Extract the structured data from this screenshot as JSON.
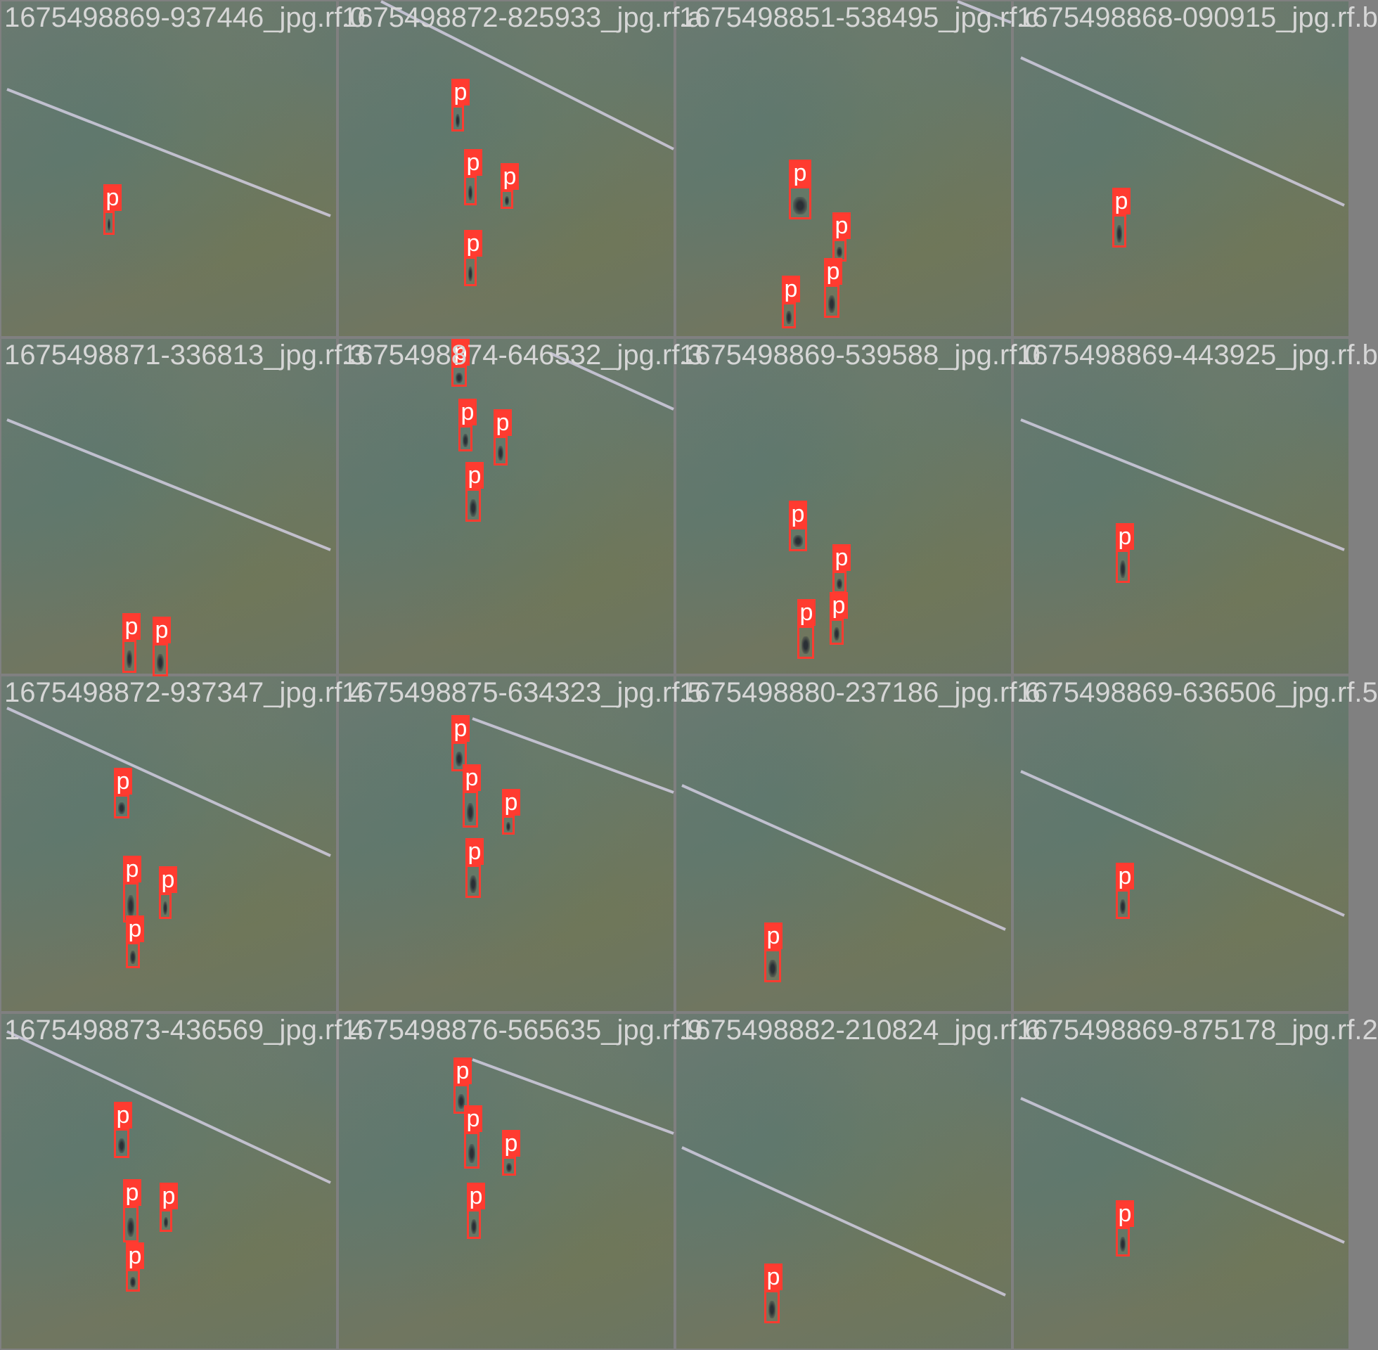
{
  "mosaic": {
    "tiles": [
      {
        "name": "1675498869-937446_jpg.rf.0",
        "detections": [
          "p"
        ]
      },
      {
        "name": "1675498872-825933_jpg.rf.a",
        "detections": [
          "p",
          "p",
          "p",
          "p"
        ]
      },
      {
        "name": "1675498851-538495_jpg.rf.c",
        "detections": [
          "p",
          "p",
          "p",
          "p"
        ]
      },
      {
        "name": "1675498868-090915_jpg.rf.b",
        "detections": [
          "p"
        ]
      },
      {
        "name": "1675498871-336813_jpg.rf.3",
        "detections": [
          "p",
          "p"
        ]
      },
      {
        "name": "1675498874-646532_jpg.rf.3",
        "detections": [
          "p",
          "p",
          "p",
          "p"
        ]
      },
      {
        "name": "1675498869-539588_jpg.rf.0",
        "detections": [
          "p",
          "p",
          "p",
          "p"
        ]
      },
      {
        "name": "1675498869-443925_jpg.rf.b",
        "detections": [
          "p"
        ]
      },
      {
        "name": "1675498872-937347_jpg.rf.4",
        "detections": [
          "p",
          "p",
          "p",
          "p"
        ]
      },
      {
        "name": "1675498875-634323_jpg.rf.5",
        "detections": [
          "p",
          "p",
          "p",
          "p"
        ]
      },
      {
        "name": "1675498880-237186_jpg.rf.6",
        "detections": [
          "p"
        ]
      },
      {
        "name": "1675498869-636506_jpg.rf.5",
        "detections": [
          "p"
        ]
      },
      {
        "name": "1675498873-436569_jpg.rf.4",
        "detections": [
          "p",
          "p",
          "p",
          "p"
        ]
      },
      {
        "name": "1675498876-565635_jpg.rf.9",
        "detections": [
          "p",
          "p",
          "p",
          "p"
        ]
      },
      {
        "name": "1675498882-210824_jpg.rf.6",
        "detections": [
          "p"
        ]
      },
      {
        "name": "1675498869-875178_jpg.rf.2",
        "detections": [
          "p"
        ]
      }
    ]
  },
  "colors": {
    "box": "#ff3b30",
    "label_text": "#ffffff",
    "grid_border": "#808080",
    "field_line": "#d8d2e8"
  }
}
